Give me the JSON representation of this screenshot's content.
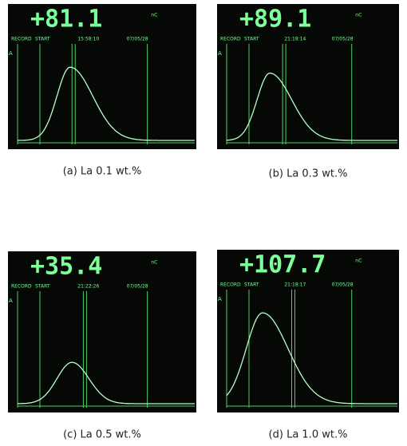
{
  "panels": [
    {
      "reading": "+81.1",
      "unit": "nC",
      "record": "RECORD",
      "start": "START",
      "time": "15:58:10",
      "date": "07/05/28",
      "marker": "A",
      "caption": "(a) La 0.1 wt.%"
    },
    {
      "reading": "+89.1",
      "unit": "nC",
      "record": "RECORD",
      "start": "START",
      "time": "21:18:14",
      "date": "07/05/28",
      "marker": "A",
      "caption": "(b) La 0.3 wt.%"
    },
    {
      "reading": "+35.4",
      "unit": "nC",
      "record": "RECORD",
      "start": "START",
      "time": "21:22:26",
      "date": "07/05/28",
      "marker": "A",
      "caption": "(c) La 0.5 wt.%"
    },
    {
      "reading": "+107.7",
      "unit": "nC",
      "record": "RECORD",
      "start": "START",
      "time": "21:18:17",
      "date": "07/05/28",
      "marker": "A",
      "caption": "(d) La 1.0 wt.%"
    }
  ]
}
